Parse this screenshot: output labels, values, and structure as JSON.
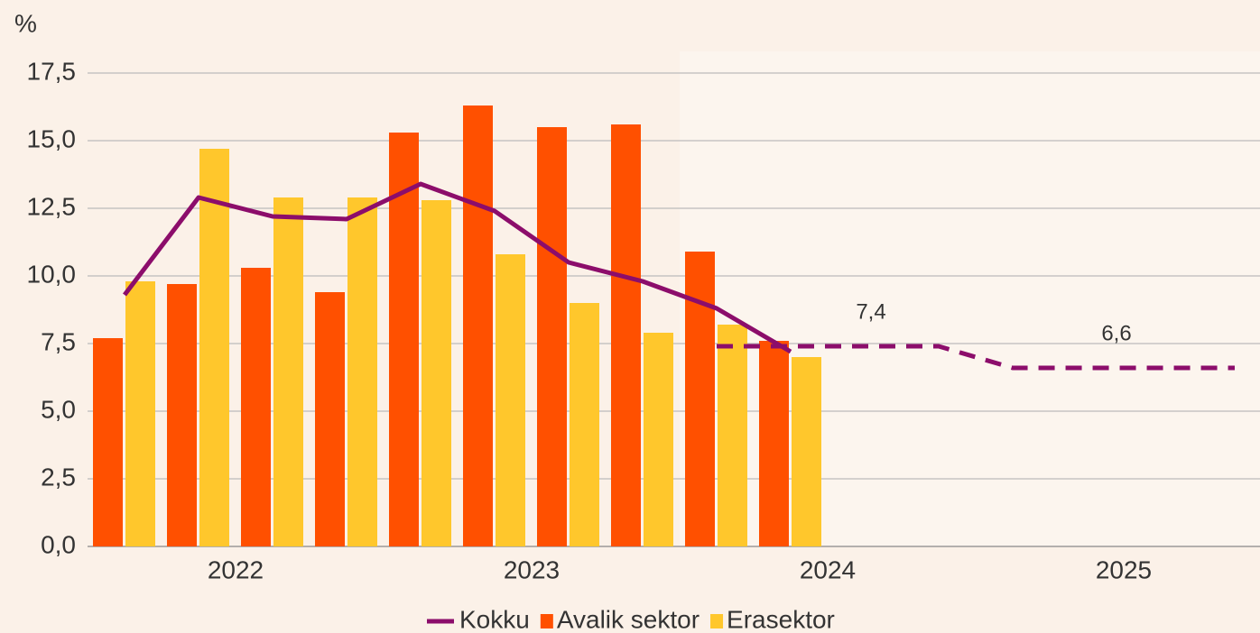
{
  "chart_data": {
    "type": "bar",
    "y_unit": "%",
    "categories": [
      null,
      null,
      null,
      null,
      null,
      null,
      null,
      null,
      null,
      null,
      null,
      null,
      null,
      null,
      null,
      null
    ],
    "year_labels": [
      "2022",
      "2023",
      "2024",
      "2025"
    ],
    "series": [
      {
        "name": "Kokku",
        "type": "line",
        "color": "#8c0d6b",
        "values": [
          9.3,
          12.9,
          12.2,
          12.1,
          13.4,
          12.4,
          10.5,
          9.8,
          8.8,
          7.2,
          null,
          null,
          null,
          null,
          null,
          null
        ],
        "forecast_values": [
          null,
          null,
          null,
          null,
          null,
          null,
          null,
          null,
          7.4,
          7.4,
          7.4,
          7.4,
          6.6,
          6.6,
          6.6,
          6.6
        ]
      },
      {
        "name": "Avalik sektor",
        "type": "bar",
        "color": "#ff5000",
        "values": [
          7.7,
          9.7,
          10.3,
          9.4,
          15.3,
          16.3,
          15.5,
          15.6,
          10.9,
          7.6,
          null,
          null,
          null,
          null,
          null,
          null
        ]
      },
      {
        "name": "Erasektor",
        "type": "bar",
        "color": "#ffc72c",
        "values": [
          9.8,
          14.7,
          12.9,
          12.9,
          12.8,
          10.8,
          9.0,
          7.9,
          8.2,
          7.0,
          null,
          null,
          null,
          null,
          null,
          null
        ]
      }
    ],
    "annotations": [
      {
        "label": "7,4",
        "value": 7.4
      },
      {
        "label": "6,6",
        "value": 6.6
      }
    ],
    "ylim": [
      0,
      17.5
    ],
    "yticks": [
      {
        "value": 0,
        "label": "0,0"
      },
      {
        "value": 2.5,
        "label": "2,5"
      },
      {
        "value": 5,
        "label": "5,0"
      },
      {
        "value": 7.5,
        "label": "7,5"
      },
      {
        "value": 10,
        "label": "10,0"
      },
      {
        "value": 12.5,
        "label": "12,5"
      },
      {
        "value": 15,
        "label": "15,0"
      },
      {
        "value": 17.5,
        "label": "17,5"
      }
    ],
    "grid": true
  }
}
